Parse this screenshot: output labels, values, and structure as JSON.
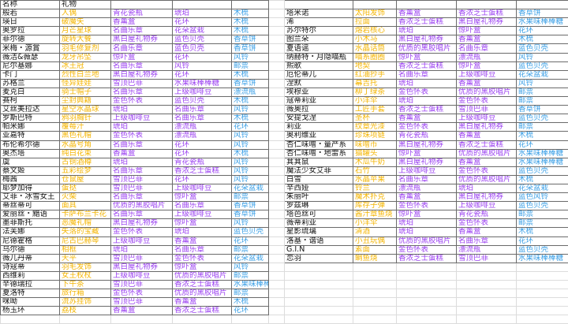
{
  "header": {
    "name": "名称",
    "gift": "礼物"
  },
  "colors": {
    "gift1": "#f4b400",
    "gift2": "#9a3ff0",
    "gift3": "#9a3ff0",
    "gift4": "#3a9fe6"
  },
  "left": [
    [
      "般若",
      "人偶",
      "青花瓷瓶",
      "琥珀",
      "木梳"
    ],
    [
      "瑛日",
      "破魔矢",
      "香薰盒",
      "花环",
      "木梳"
    ],
    [
      "奥罗拉",
      "月芒星球",
      "名曲乐章",
      "花朵盆栽",
      "木梳"
    ],
    [
      "菲尔德",
      "旋转大餐",
      "黑白屋礼物券",
      "蓝色贝壳",
      "香草饼"
    ],
    [
      "米梅・源賞",
      "羽毛修复剂",
      "名曲乐章",
      "蓝色贝壳",
      "香草饼"
    ],
    [
      "薇洁&薇瑟",
      "龙牙吊坠",
      "惊吓盒",
      "花环",
      "风铃"
    ],
    [
      "尼尔基娜",
      "冰王冠",
      "名曲乐章",
      "风铃",
      "邮票"
    ],
    [
      "卡门",
      "烈性白兰地",
      "黑白屋礼物券",
      "花环",
      "木梳"
    ],
    [
      "苏格兰",
      "怪异娃娃",
      "雪顶巴菲",
      "水果味棒棒糖",
      "香草饼"
    ],
    [
      "麦克白",
      "骑士帽子",
      "名曲乐章",
      "上级咖啡豆",
      "漂流瓶"
    ],
    [
      "赛柯",
      "尘封典籍",
      "金色怀表",
      "蓝色贝壳",
      "木梳"
    ],
    [
      "艾丝美拉达",
      "星空水晶球",
      "琥珀",
      "名曲乐章",
      "风铃"
    ],
    [
      "罗斯巴特",
      "鸦羽胸针",
      "上级咖啡豆",
      "名曲乐章",
      "木梳"
    ],
    [
      "帕米娜",
      "覆莓汁",
      "琥珀",
      "漂流瓶",
      "花环"
    ],
    [
      "亚嘉特",
      "黑色礼帽",
      "金色怀表",
      "漂流瓶",
      "风铃"
    ],
    [
      "布伦希尔德",
      "水晶号角",
      "名曲乐章",
      "花环",
      "风铃"
    ],
    [
      "奥杰塔",
      "纯白花束",
      "香薰盒",
      "花环",
      "木梳"
    ],
    [
      "虞",
      "古铜酒樽",
      "琥珀",
      "青花瓷瓶",
      "风铃"
    ],
    [
      "蔡文姬",
      "五彩绘梦",
      "名曲乐章",
      "香浓芝士蛋糕",
      "风铃"
    ],
    [
      "梅茜",
      "仓鼠屋",
      "雪顶巴菲",
      "花环",
      "风铃"
    ],
    [
      "耶梦加得",
      "蛋挞",
      "雪顶巴菲",
      "上级咖啡豆",
      "花朵盆栽"
    ],
    [
      "艾菲・冰雪女王",
      "火柴",
      "名曲乐章",
      "惊吓盒",
      "邮票"
    ],
    [
      "蒂丝蒂可",
      "面具",
      "优质的黑胶唱片",
      "名曲乐章",
      "香草饼"
    ],
    [
      "爱丽丝・黯语",
      "卡萨布兰卡花",
      "名曲乐章",
      "上级咖啡豆",
      "香草饼"
    ],
    [
      "墨菲斯托",
      "恶魔礼帽",
      "黑白屋礼物券",
      "惊吓盒",
      "风铃"
    ],
    [
      "法芙娜",
      "失落的宝藏",
      "金色怀表",
      "琥珀",
      "蓝色贝壳"
    ],
    [
      "尼德霍格",
      "尼古巴赫琴",
      "上级咖啡豆",
      "香薰盒",
      "花环"
    ],
    [
      "乌尔德",
      "相框",
      "琥珀",
      "名曲乐章",
      "邮票"
    ],
    [
      "薇儿丹蒂",
      "天平",
      "雪顶巴菲",
      "金色怀表",
      "花朵盆栽"
    ],
    [
      "诗寇蒂",
      "羽毛发饰",
      "黑白屋礼物券",
      "惊吓盒",
      "风铃"
    ],
    [
      "西维莉",
      "女王权杖",
      "上级咖啡豆",
      "优质的黑胶唱片",
      "邮票"
    ],
    [
      "辛德瑞拉",
      "下午茶",
      "雪顶巴菲",
      "香浓芝士蛋糕",
      "水果味棒棒糖"
    ],
    [
      "夏洛特",
      "旅行箱",
      "金色怀表",
      "优质的黑胶唱片",
      "邮票"
    ],
    [
      "咪呦",
      "流苏挂饰",
      "雪顶巴菲",
      "香薰盒",
      "木梳"
    ],
    [
      "杨玉环",
      "荔枝",
      "香薰盒",
      "香浓芝士蛋糕",
      "花环"
    ]
  ],
  "right": [
    [
      "塔米诺",
      "太阳发饰",
      "香薰盒",
      "香浓芝士蛋糕",
      "香草饼"
    ],
    [
      "浠",
      "拉面",
      "香浓芝士蛋糕",
      "黑白屋礼物券",
      "水果味棒棒糖"
    ],
    [
      "苏尔特尔",
      "熔岩核心",
      "琥珀",
      "惊吓盒",
      "花环"
    ],
    [
      "图兰朵",
      "小木马",
      "黑白屋礼物券",
      "香薰盒",
      "木梳"
    ],
    [
      "夏语谣",
      "水晶话筒",
      "优质的黑胶唱片",
      "名曲乐章",
      "蓝色贝壳"
    ],
    [
      "纳赫特・月隐喵瓶",
      "喵系圈圈",
      "惊吓盒",
      "漂流瓶",
      "风铃"
    ],
    [
      "熙歌",
      "地契",
      "香浓芝士蛋糕",
      "惊吓盒",
      "蓝色贝壳"
    ],
    [
      "厄伦蒂儿",
      "红油抄手",
      "名曲乐章",
      "上级咖啡豆",
      "花朵盆栽"
    ],
    [
      "涅默",
      "幕吉托",
      "琥珀",
      "香薰盒",
      "风铃"
    ],
    [
      "埃穆亚",
      "柳丁绿茶",
      "金色怀表",
      "优质的黑胶唱片",
      "邮票"
    ],
    [
      "寇蒂莉亚",
      "小洋伞",
      "琥珀",
      "金色怀表",
      "邮票"
    ],
    [
      "薇奥拉",
      "工匠手套",
      "香浓芝士蛋糕",
      "雪顶巴菲",
      "香草饼"
    ],
    [
      "安提戈涅",
      "圣杯",
      "香薰盒",
      "上级咖啡豆",
      "蓝色贝壳"
    ],
    [
      "莉亚",
      "纹章光漆",
      "金色怀表",
      "黑白屋礼物券",
      "邮票"
    ],
    [
      "奥利维亚",
      "珍珠项链",
      "青花瓷瓶",
      "香薰盒",
      "木梳"
    ],
    [
      "杏仁味噌・量产系",
      "味噌币",
      "黑白屋礼物券",
      "香浓芝士蛋糕",
      "花环"
    ],
    [
      "杏仁味噌・地雷系",
      "猫罐头",
      "惊吓盒",
      "优质的黑胶唱片",
      "水果味棒棒糖"
    ],
    [
      "萁萁鼠",
      "木瓜牛奶",
      "黑白屋礼物券",
      "香薰盒",
      "水果味棒棒糖"
    ],
    [
      "魔法少女艾菲",
      "石竹",
      "上级咖啡豆",
      "金色怀表",
      "蓝色贝壳"
    ],
    [
      "白雪",
      "水晶苹果",
      "名曲乐章",
      "优质的黑胶唱片",
      "木梳"
    ],
    [
      "辛西娅",
      "铃兰",
      "漂流瓶",
      "琥珀",
      "花朵盆栽"
    ],
    [
      "朱丽叶",
      "魔术扑克",
      "香薰盒",
      "黑白屋礼物券",
      "蓝色风铃"
    ],
    [
      "罗兹琳",
      "库存子弹",
      "金色怀表",
      "上级咖啡豆",
      "蓝色贝壳"
    ],
    [
      "塔芭丝可",
      "酱汁章鱼烧",
      "惊吓盒",
      "青花瓷瓶",
      "邮票"
    ],
    [
      "薇蒂莉亚",
      "小洋伞",
      "琥珀",
      "金色怀表",
      "邮票"
    ],
    [
      "星影琉璃",
      "清酒",
      "琥珀",
      "香薰盒",
      "木梳"
    ],
    [
      "洛基・谐语",
      "小丑玩偶",
      "优质的黑胶唱片",
      "名曲乐章",
      "花环"
    ],
    [
      "G.I.N",
      "素面",
      "金色怀表",
      "漂流瓶",
      "蓝色贝壳"
    ],
    [
      "恋羽",
      "鲷鱼烧",
      "香浓芝士蛋糕",
      "雪顶巴菲",
      "水果味棒棒糖"
    ]
  ]
}
